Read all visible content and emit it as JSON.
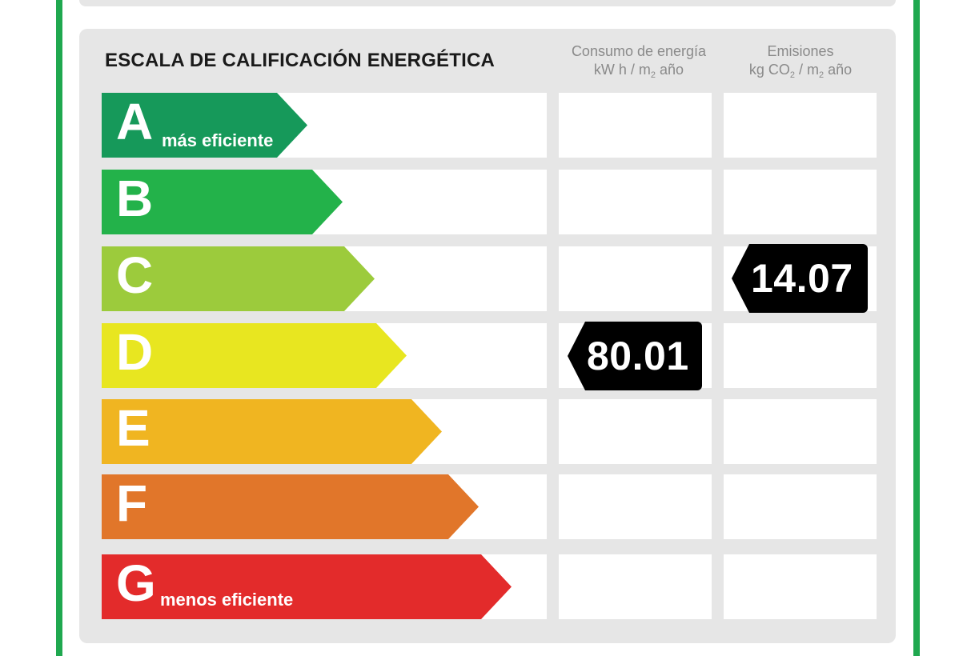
{
  "title": "ESCALA DE CALIFICACIÓN ENERGÉTICA",
  "columns": {
    "energy": {
      "line1": "Consumo de energía",
      "line2_a": "kW h / m",
      "line2_sub": "2",
      "line2_b": " año"
    },
    "emissions": {
      "line1": "Emisiones",
      "line2_a": "kg CO",
      "line2_sub1": "2",
      "line2_mid": " / m",
      "line2_sub2": "2",
      "line2_b": " año"
    }
  },
  "classes": [
    {
      "letter": "A",
      "label": "más eficiente",
      "color": "#16995a"
    },
    {
      "letter": "B",
      "label": "",
      "color": "#23b24a"
    },
    {
      "letter": "C",
      "label": "",
      "color": "#9ccb3c"
    },
    {
      "letter": "D",
      "label": "",
      "color": "#e8e620"
    },
    {
      "letter": "E",
      "label": "",
      "color": "#f0b521"
    },
    {
      "letter": "F",
      "label": "",
      "color": "#e1762a"
    },
    {
      "letter": "G",
      "label": "menos eficiente",
      "color": "#e32b2b"
    }
  ],
  "rating": {
    "energy": {
      "class": "D",
      "value": "80.01"
    },
    "emissions": {
      "class": "C",
      "value": "14.07"
    }
  }
}
